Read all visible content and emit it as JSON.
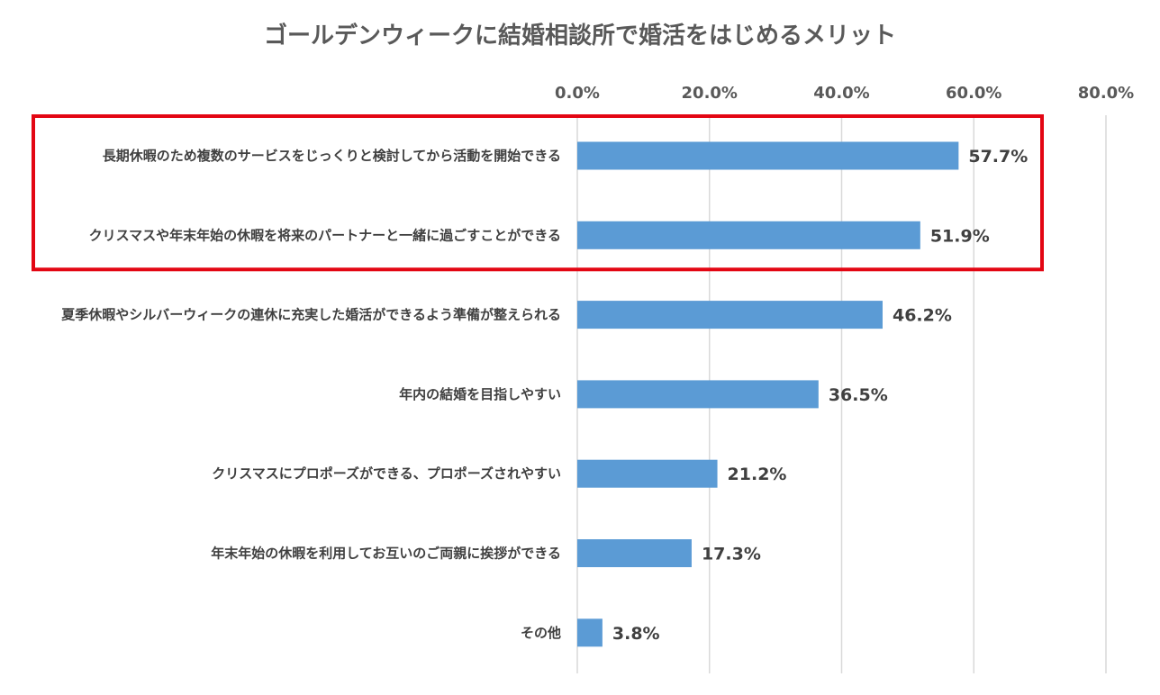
{
  "chart_data": {
    "type": "bar",
    "orientation": "horizontal",
    "title": "ゴールデンウィークに結婚相談所で婚活をはじめるメリット",
    "categories": [
      "長期休暇のため複数のサービスをじっくりと検討してから活動を開始できる",
      "クリスマスや年末年始の休暇を将来のパートナーと一緒に過ごすことができる",
      "夏季休暇やシルバーウィークの連休に充実した婚活ができるよう準備が整えられる",
      "年内の結婚を目指しやすい",
      "クリスマスにプロポーズができる、プロポーズされやすい",
      "年末年始の休暇を利用してお互いのご両親に挨拶ができる",
      "その他"
    ],
    "values": [
      57.7,
      51.9,
      46.2,
      36.5,
      21.2,
      17.3,
      3.8
    ],
    "data_labels": [
      "57.7%",
      "51.9%",
      "46.2%",
      "36.5%",
      "21.2%",
      "17.3%",
      "3.8%"
    ],
    "xlim": [
      0,
      80
    ],
    "ticks": [
      0,
      20,
      40,
      60,
      80
    ],
    "tick_labels": [
      "0.0%",
      "20.0%",
      "40.0%",
      "60.0%",
      "80.0%"
    ],
    "axis_position": "top",
    "grid": true,
    "highlighted_categories": [
      0,
      1
    ],
    "xlabel": "",
    "ylabel": ""
  },
  "colors": {
    "bar": "#5b9bd5",
    "grid": "#d9d9d9",
    "highlight": "#e30613"
  }
}
